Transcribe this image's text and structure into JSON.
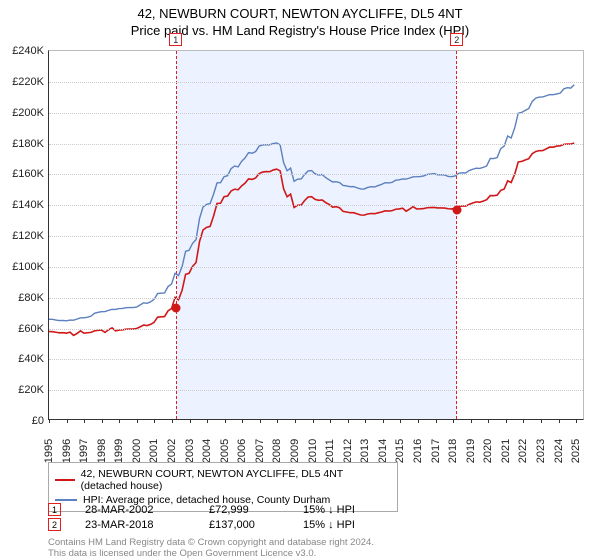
{
  "title": "42, NEWBURN COURT, NEWTON AYCLIFFE, DL5 4NT",
  "subtitle": "Price paid vs. HM Land Registry's House Price Index (HPI)",
  "chart": {
    "type": "line",
    "x_range": [
      1995,
      2025.5
    ],
    "y_range": [
      0,
      240000
    ],
    "y_ticks": [
      0,
      20000,
      40000,
      60000,
      80000,
      100000,
      120000,
      140000,
      160000,
      180000,
      200000,
      220000,
      240000
    ],
    "y_tick_labels": [
      "£0",
      "£20K",
      "£40K",
      "£60K",
      "£80K",
      "£100K",
      "£120K",
      "£140K",
      "£160K",
      "£180K",
      "£200K",
      "£220K",
      "£240K"
    ],
    "x_ticks": [
      1995,
      1996,
      1997,
      1998,
      1999,
      2000,
      2001,
      2002,
      2003,
      2004,
      2005,
      2006,
      2007,
      2008,
      2009,
      2010,
      2011,
      2012,
      2013,
      2014,
      2015,
      2016,
      2017,
      2018,
      2019,
      2020,
      2021,
      2022,
      2023,
      2024,
      2025
    ],
    "background_color": "#ffffff",
    "grid_color": "#cccccc",
    "highlight_band": {
      "x_start": 2002.24,
      "x_end": 2018.23,
      "fill": "rgba(100,150,255,0.12)",
      "border": "#e02020"
    },
    "series": [
      {
        "name": "property",
        "color": "#d01818",
        "line_width": 1.6,
        "points": [
          [
            1995,
            57000
          ],
          [
            1996,
            56000
          ],
          [
            1997,
            56000
          ],
          [
            1998,
            58000
          ],
          [
            1999,
            58000
          ],
          [
            2000,
            59000
          ],
          [
            2001,
            63000
          ],
          [
            2002,
            72000
          ],
          [
            2003,
            95000
          ],
          [
            2004,
            125000
          ],
          [
            2005,
            145000
          ],
          [
            2006,
            152000
          ],
          [
            2007,
            160000
          ],
          [
            2008,
            163000
          ],
          [
            2009,
            138000
          ],
          [
            2010,
            145000
          ],
          [
            2011,
            140000
          ],
          [
            2012,
            135000
          ],
          [
            2013,
            133000
          ],
          [
            2014,
            135000
          ],
          [
            2015,
            137000
          ],
          [
            2016,
            137000
          ],
          [
            2017,
            138000
          ],
          [
            2018,
            137000
          ],
          [
            2019,
            140000
          ],
          [
            2020,
            143000
          ],
          [
            2021,
            150000
          ],
          [
            2022,
            168000
          ],
          [
            2023,
            175000
          ],
          [
            2024,
            178000
          ],
          [
            2025,
            180000
          ]
        ]
      },
      {
        "name": "hpi",
        "color": "#5b7fbf",
        "line_width": 1.4,
        "points": [
          [
            1995,
            65000
          ],
          [
            1996,
            64000
          ],
          [
            1997,
            66000
          ],
          [
            1998,
            70000
          ],
          [
            1999,
            72000
          ],
          [
            2000,
            73000
          ],
          [
            2001,
            78000
          ],
          [
            2002,
            88000
          ],
          [
            2003,
            110000
          ],
          [
            2004,
            140000
          ],
          [
            2005,
            158000
          ],
          [
            2006,
            168000
          ],
          [
            2007,
            178000
          ],
          [
            2008,
            180000
          ],
          [
            2009,
            155000
          ],
          [
            2010,
            162000
          ],
          [
            2011,
            156000
          ],
          [
            2012,
            152000
          ],
          [
            2013,
            150000
          ],
          [
            2014,
            153000
          ],
          [
            2015,
            156000
          ],
          [
            2016,
            158000
          ],
          [
            2017,
            160000
          ],
          [
            2018,
            158000
          ],
          [
            2019,
            162000
          ],
          [
            2020,
            165000
          ],
          [
            2021,
            178000
          ],
          [
            2022,
            200000
          ],
          [
            2023,
            210000
          ],
          [
            2024,
            212000
          ],
          [
            2025,
            218000
          ]
        ]
      }
    ],
    "sale_markers": [
      {
        "idx": "1",
        "x": 2002.24,
        "y": 72999,
        "color": "#d01818"
      },
      {
        "idx": "2",
        "x": 2018.23,
        "y": 137000,
        "color": "#d01818"
      }
    ]
  },
  "legend": {
    "items": [
      {
        "label": "42, NEWBURN COURT, NEWTON AYCLIFFE, DL5 4NT (detached house)",
        "color": "#d01818"
      },
      {
        "label": "HPI: Average price, detached house, County Durham",
        "color": "#5b7fbf"
      }
    ]
  },
  "sales": [
    {
      "idx": "1",
      "date": "28-MAR-2002",
      "price": "£72,999",
      "pct": "15%",
      "arrow": "↓",
      "suffix": "HPI"
    },
    {
      "idx": "2",
      "date": "23-MAR-2018",
      "price": "£137,000",
      "pct": "15%",
      "arrow": "↓",
      "suffix": "HPI"
    }
  ],
  "footer1": "Contains HM Land Registry data © Crown copyright and database right 2024.",
  "footer2": "This data is licensed under the Open Government Licence v3.0."
}
